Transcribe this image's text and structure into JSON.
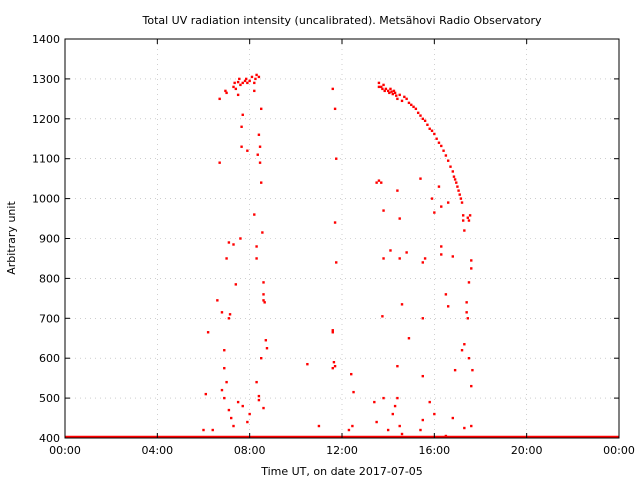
{
  "chart_data": {
    "type": "scatter",
    "title": "Total UV radiation intensity (uncalibrated). Metsähovi Radio Observatory",
    "xlabel": "Time UT, on date 2017-07-05",
    "ylabel": "Arbitrary unit",
    "xlim": [
      0,
      24
    ],
    "ylim": [
      400,
      1400
    ],
    "x_ticks": [
      0,
      4,
      8,
      12,
      16,
      20,
      24
    ],
    "x_tick_labels": [
      "00:00",
      "04:00",
      "08:00",
      "12:00",
      "16:00",
      "20:00",
      "00:00"
    ],
    "y_ticks": [
      400,
      500,
      600,
      700,
      800,
      900,
      1000,
      1100,
      1200,
      1300,
      1400
    ],
    "y_tick_labels": [
      "400",
      "500",
      "600",
      "700",
      "800",
      "900",
      "1000",
      "1100",
      "1200",
      "1300",
      "1400"
    ],
    "grid": true,
    "marker_color": "#ff0000",
    "baseline": 400,
    "points": [
      [
        6.1,
        510
      ],
      [
        6.2,
        665
      ],
      [
        6.4,
        420
      ],
      [
        6.6,
        745
      ],
      [
        6.7,
        1090
      ],
      [
        6.7,
        1250
      ],
      [
        6.8,
        715
      ],
      [
        6.9,
        575
      ],
      [
        6.9,
        620
      ],
      [
        6.95,
        1270
      ],
      [
        7.0,
        1265
      ],
      [
        7.0,
        850
      ],
      [
        7.1,
        890
      ],
      [
        7.1,
        700
      ],
      [
        7.15,
        710
      ],
      [
        7.3,
        885
      ],
      [
        7.4,
        785
      ],
      [
        7.3,
        1280
      ],
      [
        7.35,
        1290
      ],
      [
        7.4,
        1275
      ],
      [
        7.5,
        1292
      ],
      [
        7.5,
        1260
      ],
      [
        7.55,
        1300
      ],
      [
        7.6,
        1285
      ],
      [
        7.6,
        900
      ],
      [
        7.7,
        1290
      ],
      [
        7.7,
        1210
      ],
      [
        7.65,
        1180
      ],
      [
        7.65,
        1130
      ],
      [
        7.8,
        1295
      ],
      [
        7.85,
        1300
      ],
      [
        7.9,
        1290
      ],
      [
        7.9,
        1120
      ],
      [
        8.0,
        1295
      ],
      [
        8.1,
        1305
      ],
      [
        8.2,
        1290
      ],
      [
        8.2,
        1270
      ],
      [
        8.2,
        960
      ],
      [
        8.25,
        1300
      ],
      [
        8.3,
        1310
      ],
      [
        8.3,
        880
      ],
      [
        8.35,
        1110
      ],
      [
        8.4,
        1305
      ],
      [
        8.4,
        1160
      ],
      [
        8.45,
        1130
      ],
      [
        8.45,
        1090
      ],
      [
        8.5,
        1225
      ],
      [
        8.5,
        1040
      ],
      [
        8.55,
        915
      ],
      [
        8.6,
        790
      ],
      [
        8.6,
        760
      ],
      [
        8.6,
        745
      ],
      [
        8.65,
        740
      ],
      [
        8.7,
        645
      ],
      [
        8.75,
        625
      ],
      [
        8.3,
        850
      ],
      [
        6.8,
        520
      ],
      [
        6.9,
        500
      ],
      [
        7.0,
        540
      ],
      [
        7.1,
        470
      ],
      [
        7.2,
        450
      ],
      [
        7.3,
        430
      ],
      [
        7.5,
        490
      ],
      [
        7.7,
        480
      ],
      [
        8.3,
        540
      ],
      [
        8.4,
        505
      ],
      [
        8.4,
        495
      ],
      [
        8.5,
        600
      ],
      [
        8.6,
        475
      ],
      [
        8.0,
        460
      ],
      [
        7.9,
        440
      ],
      [
        6.0,
        420
      ],
      [
        11.6,
        1275
      ],
      [
        11.7,
        1225
      ],
      [
        11.75,
        1100
      ],
      [
        11.7,
        940
      ],
      [
        11.75,
        840
      ],
      [
        11.6,
        670
      ],
      [
        11.6,
        665
      ],
      [
        11.65,
        590
      ],
      [
        11.7,
        580
      ],
      [
        11.6,
        575
      ],
      [
        10.5,
        585
      ],
      [
        11.0,
        430
      ],
      [
        12.4,
        560
      ],
      [
        12.5,
        515
      ],
      [
        12.3,
        420
      ],
      [
        12.45,
        430
      ],
      [
        13.6,
        1290
      ],
      [
        13.6,
        1280
      ],
      [
        13.7,
        1280
      ],
      [
        13.75,
        1275
      ],
      [
        13.8,
        1285
      ],
      [
        13.85,
        1270
      ],
      [
        13.9,
        1275
      ],
      [
        14.0,
        1270
      ],
      [
        14.05,
        1265
      ],
      [
        14.1,
        1275
      ],
      [
        14.15,
        1268
      ],
      [
        14.2,
        1262
      ],
      [
        14.25,
        1270
      ],
      [
        14.3,
        1265
      ],
      [
        14.35,
        1258
      ],
      [
        14.4,
        1250
      ],
      [
        14.5,
        1260
      ],
      [
        14.6,
        1245
      ],
      [
        14.7,
        1255
      ],
      [
        14.8,
        1250
      ],
      [
        14.9,
        1240
      ],
      [
        15.0,
        1235
      ],
      [
        15.1,
        1230
      ],
      [
        15.2,
        1225
      ],
      [
        15.3,
        1215
      ],
      [
        15.4,
        1208
      ],
      [
        15.5,
        1200
      ],
      [
        15.6,
        1195
      ],
      [
        15.7,
        1185
      ],
      [
        15.8,
        1175
      ],
      [
        15.9,
        1170
      ],
      [
        16.0,
        1162
      ],
      [
        16.1,
        1150
      ],
      [
        16.2,
        1140
      ],
      [
        16.3,
        1132
      ],
      [
        16.4,
        1120
      ],
      [
        16.5,
        1108
      ],
      [
        16.6,
        1095
      ],
      [
        16.7,
        1080
      ],
      [
        16.8,
        1068
      ],
      [
        16.85,
        1055
      ],
      [
        16.9,
        1048
      ],
      [
        16.95,
        1040
      ],
      [
        17.0,
        1030
      ],
      [
        17.05,
        1020
      ],
      [
        17.1,
        1010
      ],
      [
        17.15,
        1000
      ],
      [
        17.2,
        990
      ],
      [
        17.25,
        958
      ],
      [
        17.25,
        945
      ],
      [
        17.3,
        920
      ],
      [
        17.45,
        952
      ],
      [
        17.5,
        945
      ],
      [
        17.55,
        958
      ],
      [
        13.5,
        1040
      ],
      [
        13.6,
        1045
      ],
      [
        13.7,
        1040
      ],
      [
        13.8,
        970
      ],
      [
        13.8,
        850
      ],
      [
        13.75,
        705
      ],
      [
        14.1,
        870
      ],
      [
        14.4,
        1020
      ],
      [
        14.5,
        950
      ],
      [
        14.5,
        850
      ],
      [
        14.6,
        735
      ],
      [
        14.8,
        865
      ],
      [
        14.9,
        650
      ],
      [
        15.4,
        1050
      ],
      [
        15.5,
        840
      ],
      [
        15.6,
        850
      ],
      [
        15.5,
        700
      ],
      [
        15.5,
        555
      ],
      [
        15.9,
        1000
      ],
      [
        16.0,
        965
      ],
      [
        16.2,
        1030
      ],
      [
        16.3,
        980
      ],
      [
        16.3,
        880
      ],
      [
        16.3,
        860
      ],
      [
        16.5,
        760
      ],
      [
        16.6,
        730
      ],
      [
        16.6,
        990
      ],
      [
        16.8,
        855
      ],
      [
        16.9,
        570
      ],
      [
        17.2,
        620
      ],
      [
        17.3,
        635
      ],
      [
        17.4,
        740
      ],
      [
        17.4,
        715
      ],
      [
        17.45,
        700
      ],
      [
        17.5,
        600
      ],
      [
        17.6,
        825
      ],
      [
        17.6,
        845
      ],
      [
        17.65,
        570
      ],
      [
        17.6,
        530
      ],
      [
        17.5,
        790
      ],
      [
        13.4,
        490
      ],
      [
        13.5,
        440
      ],
      [
        13.8,
        500
      ],
      [
        14.0,
        420
      ],
      [
        14.2,
        460
      ],
      [
        14.3,
        480
      ],
      [
        14.4,
        500
      ],
      [
        14.4,
        580
      ],
      [
        14.5,
        430
      ],
      [
        14.6,
        410
      ],
      [
        15.4,
        420
      ],
      [
        15.5,
        445
      ],
      [
        15.8,
        490
      ],
      [
        16.0,
        460
      ],
      [
        16.5,
        405
      ],
      [
        16.8,
        450
      ],
      [
        17.3,
        425
      ],
      [
        17.6,
        430
      ]
    ]
  }
}
